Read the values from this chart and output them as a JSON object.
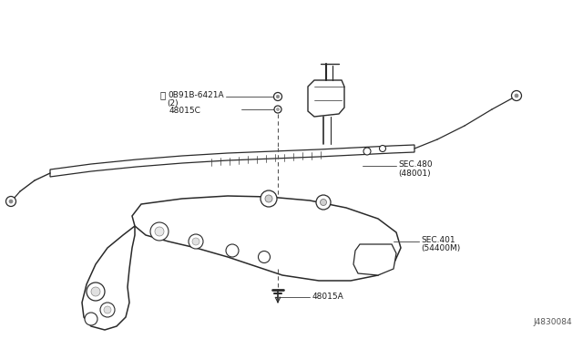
{
  "bg_color": "#ffffff",
  "line_color": "#2a2a2a",
  "text_color": "#1a1a1a",
  "diagram_id": "J4830084",
  "label_n_bolt": "N 0B91B-6421A",
  "label_n_bolt2": "(2)",
  "label_washer": "48015C",
  "label_bolt_lower": "48015A",
  "label_sec480": "SEC.480",
  "label_sec480b": "(48001)",
  "label_sec401": "SEC.401",
  "label_sec401b": "(54400M)",
  "font_size": 7.5
}
